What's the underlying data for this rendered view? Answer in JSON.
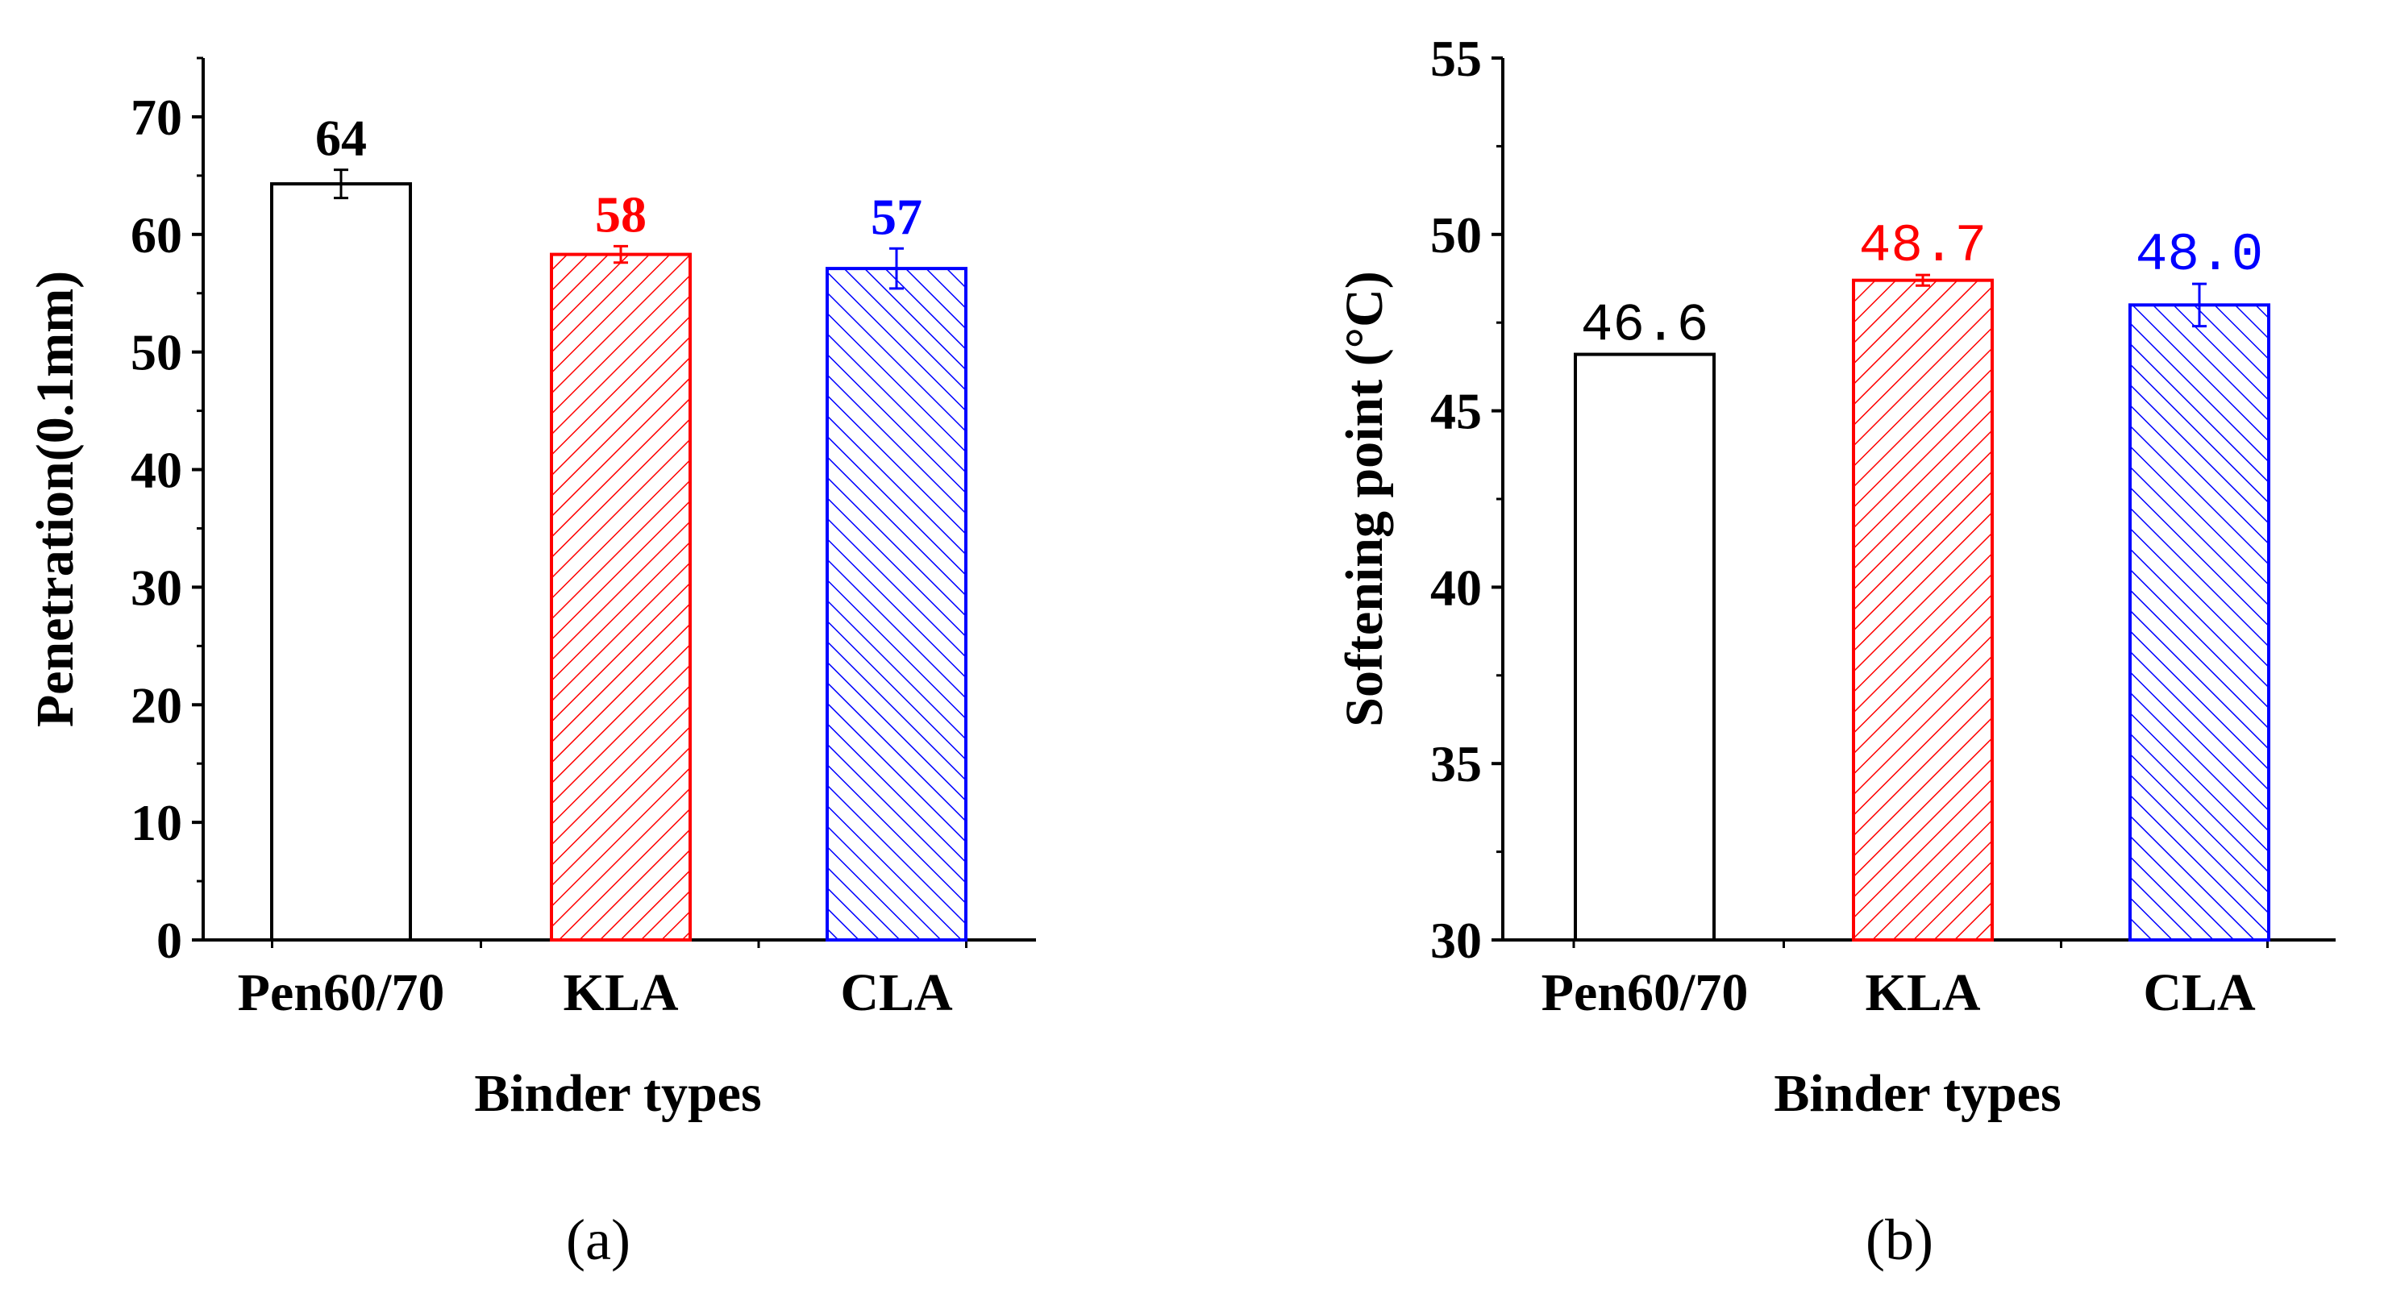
{
  "chart_data": [
    {
      "type": "bar",
      "panel_label": "(a)",
      "categories": [
        "Pen60/70",
        "KLA",
        "CLA"
      ],
      "values": [
        64.3,
        58.3,
        57.1
      ],
      "errors": [
        1.2,
        0.7,
        1.7
      ],
      "data_labels": [
        "64",
        "58",
        "57"
      ],
      "bar_colors": [
        "#000000",
        "#ff0000",
        "#0000ff"
      ],
      "patterns": [
        "none",
        "forward",
        "backward"
      ],
      "xlabel": "Binder types",
      "ylabel": "Penetration(0.1mm)",
      "ylim": [
        0,
        75
      ],
      "yticks": [
        0,
        10,
        20,
        30,
        40,
        50,
        60,
        70
      ],
      "ytick_labels": [
        "0",
        "10",
        "20",
        "30",
        "40",
        "50",
        "60",
        "70"
      ]
    },
    {
      "type": "bar",
      "panel_label": "(b)",
      "categories": [
        "Pen60/70",
        "KLA",
        "CLA"
      ],
      "values": [
        46.6,
        48.7,
        48.0
      ],
      "errors": [
        0,
        0.15,
        0.6
      ],
      "data_labels": [
        "46.6",
        "48.7",
        "48.0"
      ],
      "bar_colors": [
        "#000000",
        "#ff0000",
        "#0000ff"
      ],
      "patterns": [
        "none",
        "forward",
        "backward"
      ],
      "xlabel": "Binder types",
      "ylabel": "Softening point (°C)",
      "ylim": [
        30,
        55
      ],
      "yticks": [
        30,
        35,
        40,
        45,
        50,
        55
      ],
      "ytick_labels": [
        "30",
        "35",
        "40",
        "45",
        "50",
        "55"
      ]
    }
  ]
}
